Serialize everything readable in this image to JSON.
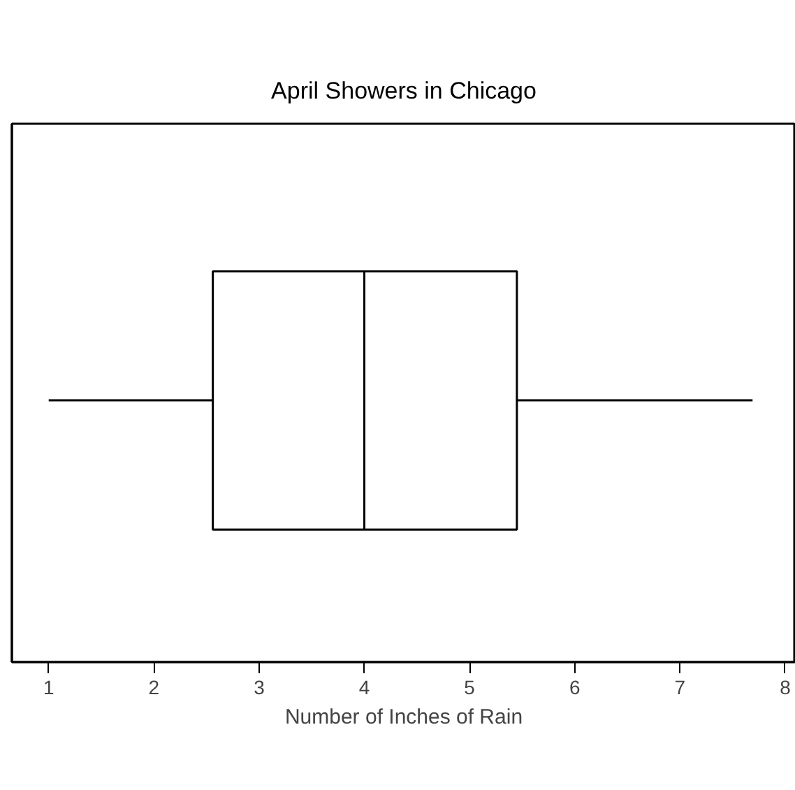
{
  "chart_data": {
    "type": "box",
    "title": "April Showers in Chicago",
    "xlabel": "Number of Inches of Rain",
    "orientation": "horizontal",
    "categories": [
      null
    ],
    "boxes": [
      {
        "low": 1.0,
        "q1": 2.56,
        "median": 4.0,
        "q3": 5.45,
        "high": 7.69
      }
    ],
    "xlim": [
      0.65,
      8.1
    ],
    "xticks": [
      1,
      2,
      3,
      4,
      5,
      6,
      7,
      8
    ],
    "tick_labels": "x",
    "grid": false
  }
}
